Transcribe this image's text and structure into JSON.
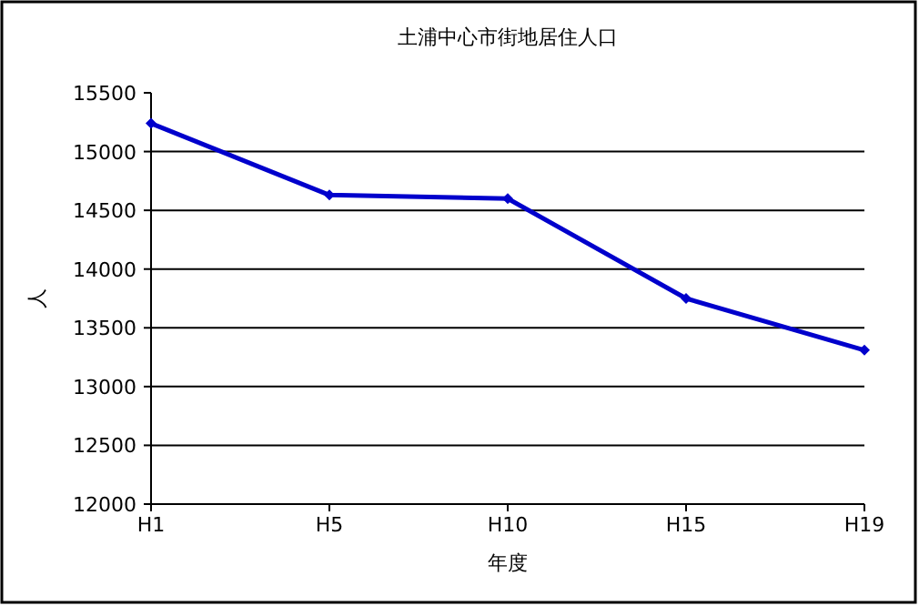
{
  "chart_data": {
    "type": "line",
    "title": "土浦中心市街地居住人口",
    "xlabel": "年度",
    "ylabel": "人",
    "categories": [
      "H1",
      "H5",
      "H10",
      "H15",
      "H19"
    ],
    "series": [
      {
        "color": "#0000cc",
        "values": [
          15240,
          14630,
          14600,
          13750,
          13310
        ]
      }
    ],
    "ylim": [
      12000,
      15500
    ],
    "yticks": [
      12000,
      12500,
      13000,
      13500,
      14000,
      14500,
      15000,
      15500
    ],
    "grid": "y",
    "marker": "diamond",
    "line_style": "solid"
  }
}
